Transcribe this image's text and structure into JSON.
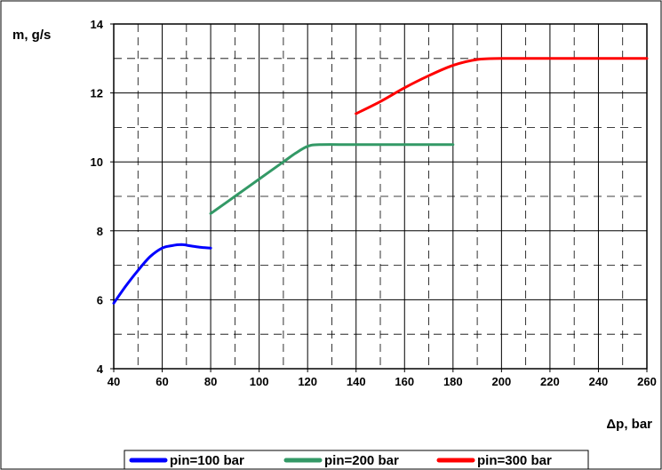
{
  "chart_data": {
    "type": "line",
    "title": "",
    "xlabel": "Δp, bar",
    "ylabel": "m, g/s",
    "xlim": [
      40,
      260
    ],
    "ylim": [
      4,
      14
    ],
    "x_ticks": [
      40,
      60,
      80,
      100,
      120,
      140,
      160,
      180,
      200,
      220,
      240,
      260
    ],
    "y_ticks": [
      4,
      6,
      8,
      10,
      12,
      14
    ],
    "grid": "solid major, dashed minor",
    "legend_position": "bottom",
    "series": [
      {
        "name": "pin=100 bar",
        "color": "#0000ff",
        "x": [
          40,
          45,
          50,
          55,
          60,
          64,
          68,
          72,
          76,
          80
        ],
        "y": [
          5.9,
          6.4,
          6.85,
          7.25,
          7.5,
          7.57,
          7.6,
          7.56,
          7.52,
          7.5
        ]
      },
      {
        "name": "pin=200 bar",
        "color": "#339966",
        "x": [
          80,
          90,
          100,
          110,
          115,
          120,
          125,
          140,
          160,
          180
        ],
        "y": [
          8.5,
          9.0,
          9.5,
          10.0,
          10.25,
          10.45,
          10.5,
          10.5,
          10.5,
          10.5
        ]
      },
      {
        "name": "pin=300 bar",
        "color": "#ff0000",
        "x": [
          140,
          150,
          160,
          170,
          180,
          190,
          200,
          220,
          240,
          260
        ],
        "y": [
          11.4,
          11.75,
          12.15,
          12.5,
          12.8,
          12.97,
          13.0,
          13.0,
          13.0,
          13.0
        ]
      }
    ]
  }
}
